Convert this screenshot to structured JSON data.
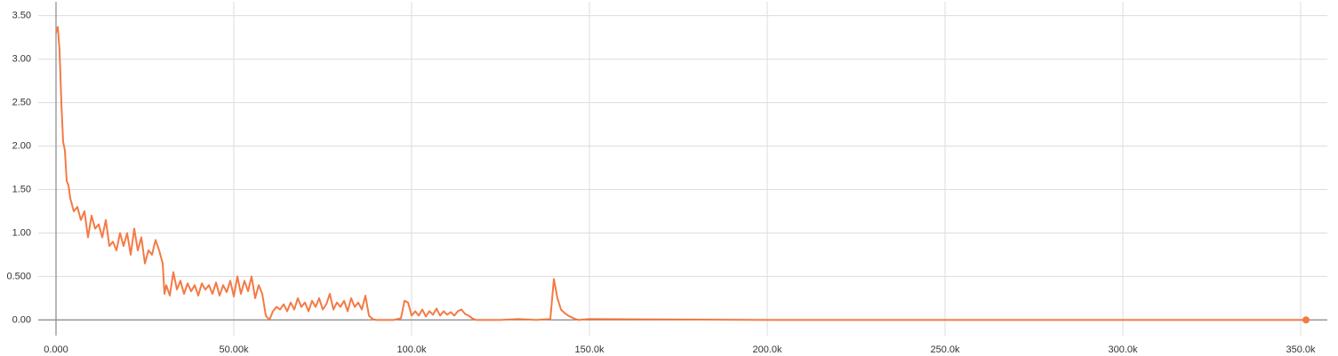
{
  "chart_data": {
    "type": "line",
    "color": "#f47a45",
    "grid": true,
    "xlim": [
      -5000,
      357500
    ],
    "ylim": [
      -0.18,
      3.66
    ],
    "xticks": [
      {
        "value": 0,
        "label": "0.000"
      },
      {
        "value": 50000,
        "label": "50.00k"
      },
      {
        "value": 100000,
        "label": "100.0k"
      },
      {
        "value": 150000,
        "label": "150.0k"
      },
      {
        "value": 200000,
        "label": "200.0k"
      },
      {
        "value": 250000,
        "label": "250.0k"
      },
      {
        "value": 300000,
        "label": "300.0k"
      },
      {
        "value": 350000,
        "label": "350.0k"
      }
    ],
    "yticks": [
      {
        "value": 0,
        "label": "0.00"
      },
      {
        "value": 0.5,
        "label": "0.500"
      },
      {
        "value": 1,
        "label": "1.00"
      },
      {
        "value": 1.5,
        "label": "1.50"
      },
      {
        "value": 2,
        "label": "2.00"
      },
      {
        "value": 2.5,
        "label": "2.50"
      },
      {
        "value": 3,
        "label": "3.00"
      },
      {
        "value": 3.5,
        "label": "3.50"
      }
    ],
    "x": [
      0,
      500,
      1000,
      1500,
      2000,
      2500,
      3000,
      3500,
      4000,
      5000,
      6000,
      7000,
      8000,
      9000,
      10000,
      11000,
      12000,
      13000,
      14000,
      15000,
      16000,
      17000,
      18000,
      19000,
      20000,
      21000,
      22000,
      23000,
      24000,
      25000,
      26000,
      27000,
      28000,
      29000,
      30000,
      30500,
      31000,
      32000,
      33000,
      34000,
      35000,
      36000,
      37000,
      38000,
      39000,
      40000,
      41000,
      42000,
      43000,
      44000,
      45000,
      46000,
      47000,
      48000,
      49000,
      50000,
      51000,
      52000,
      53000,
      54000,
      55000,
      56000,
      57000,
      58000,
      59000,
      60000,
      61000,
      62000,
      63000,
      64000,
      65000,
      66000,
      67000,
      68000,
      69000,
      70000,
      71000,
      72000,
      73000,
      74000,
      75000,
      76000,
      77000,
      78000,
      79000,
      80000,
      81000,
      82000,
      83000,
      84000,
      85000,
      86000,
      87000,
      88000,
      89000,
      90000,
      95000,
      97000,
      98000,
      99000,
      100000,
      101000,
      102000,
      103000,
      104000,
      105000,
      106000,
      107000,
      108000,
      109000,
      110000,
      111000,
      112000,
      113000,
      114000,
      115000,
      116000,
      117000,
      118000,
      125000,
      130000,
      135000,
      139000,
      140000,
      141000,
      142000,
      143000,
      144000,
      145000,
      146000,
      147000,
      150000,
      200000,
      250000,
      300000,
      351500
    ],
    "values": [
      3.3,
      3.37,
      3.1,
      2.5,
      2.05,
      1.95,
      1.6,
      1.55,
      1.4,
      1.25,
      1.3,
      1.15,
      1.25,
      0.95,
      1.2,
      1.05,
      1.1,
      0.95,
      1.15,
      0.85,
      0.9,
      0.8,
      1.0,
      0.85,
      1.0,
      0.75,
      1.05,
      0.8,
      0.95,
      0.65,
      0.8,
      0.75,
      0.92,
      0.8,
      0.65,
      0.3,
      0.4,
      0.28,
      0.55,
      0.35,
      0.45,
      0.3,
      0.42,
      0.33,
      0.4,
      0.28,
      0.42,
      0.35,
      0.4,
      0.3,
      0.43,
      0.28,
      0.4,
      0.32,
      0.45,
      0.27,
      0.5,
      0.3,
      0.45,
      0.33,
      0.5,
      0.25,
      0.4,
      0.3,
      0.05,
      0.0,
      0.1,
      0.15,
      0.12,
      0.18,
      0.1,
      0.2,
      0.12,
      0.25,
      0.15,
      0.2,
      0.1,
      0.22,
      0.15,
      0.25,
      0.12,
      0.18,
      0.3,
      0.12,
      0.2,
      0.15,
      0.22,
      0.1,
      0.25,
      0.15,
      0.2,
      0.12,
      0.28,
      0.05,
      0.01,
      0.0,
      0.0,
      0.02,
      0.22,
      0.2,
      0.05,
      0.1,
      0.05,
      0.12,
      0.04,
      0.1,
      0.06,
      0.13,
      0.05,
      0.1,
      0.06,
      0.09,
      0.05,
      0.1,
      0.12,
      0.07,
      0.05,
      0.02,
      0.0,
      0.0,
      0.01,
      0.0,
      0.01,
      0.47,
      0.25,
      0.12,
      0.08,
      0.05,
      0.03,
      0.01,
      0.0,
      0.01,
      0.0,
      0.0,
      0.0,
      0.0
    ]
  }
}
